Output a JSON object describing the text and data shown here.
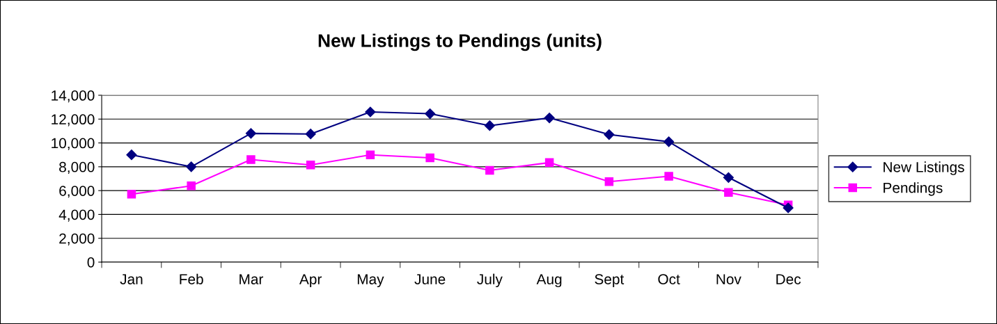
{
  "chart_data": {
    "type": "line",
    "title": "New Listings to Pendings (units)",
    "categories": [
      "Jan",
      "Feb",
      "Mar",
      "Apr",
      "May",
      "June",
      "July",
      "Aug",
      "Sept",
      "Oct",
      "Nov",
      "Dec"
    ],
    "series": [
      {
        "name": "New Listings",
        "color": "#000080",
        "marker": "diamond",
        "values": [
          9000,
          8000,
          10800,
          10750,
          12600,
          12450,
          11450,
          12100,
          10700,
          10100,
          7100,
          4550
        ]
      },
      {
        "name": "Pendings",
        "color": "#ff00ff",
        "marker": "square",
        "values": [
          5700,
          6400,
          8600,
          8150,
          9000,
          8750,
          7700,
          8350,
          6750,
          7200,
          5850,
          4800
        ]
      }
    ],
    "ylim": [
      0,
      14000
    ],
    "yticks": [
      0,
      {
        "value": 2000,
        "label": "2,000"
      },
      {
        "value": 4000,
        "label": "4,000"
      },
      {
        "value": 6000,
        "label": "6,000"
      },
      {
        "value": 8000,
        "label": "8,000"
      },
      {
        "value": 10000,
        "label": "10,000"
      },
      {
        "value": 12000,
        "label": "12,000"
      },
      {
        "value": 14000,
        "label": "14,000"
      }
    ],
    "grid": "y",
    "legend": "right",
    "line_style": "solid"
  }
}
